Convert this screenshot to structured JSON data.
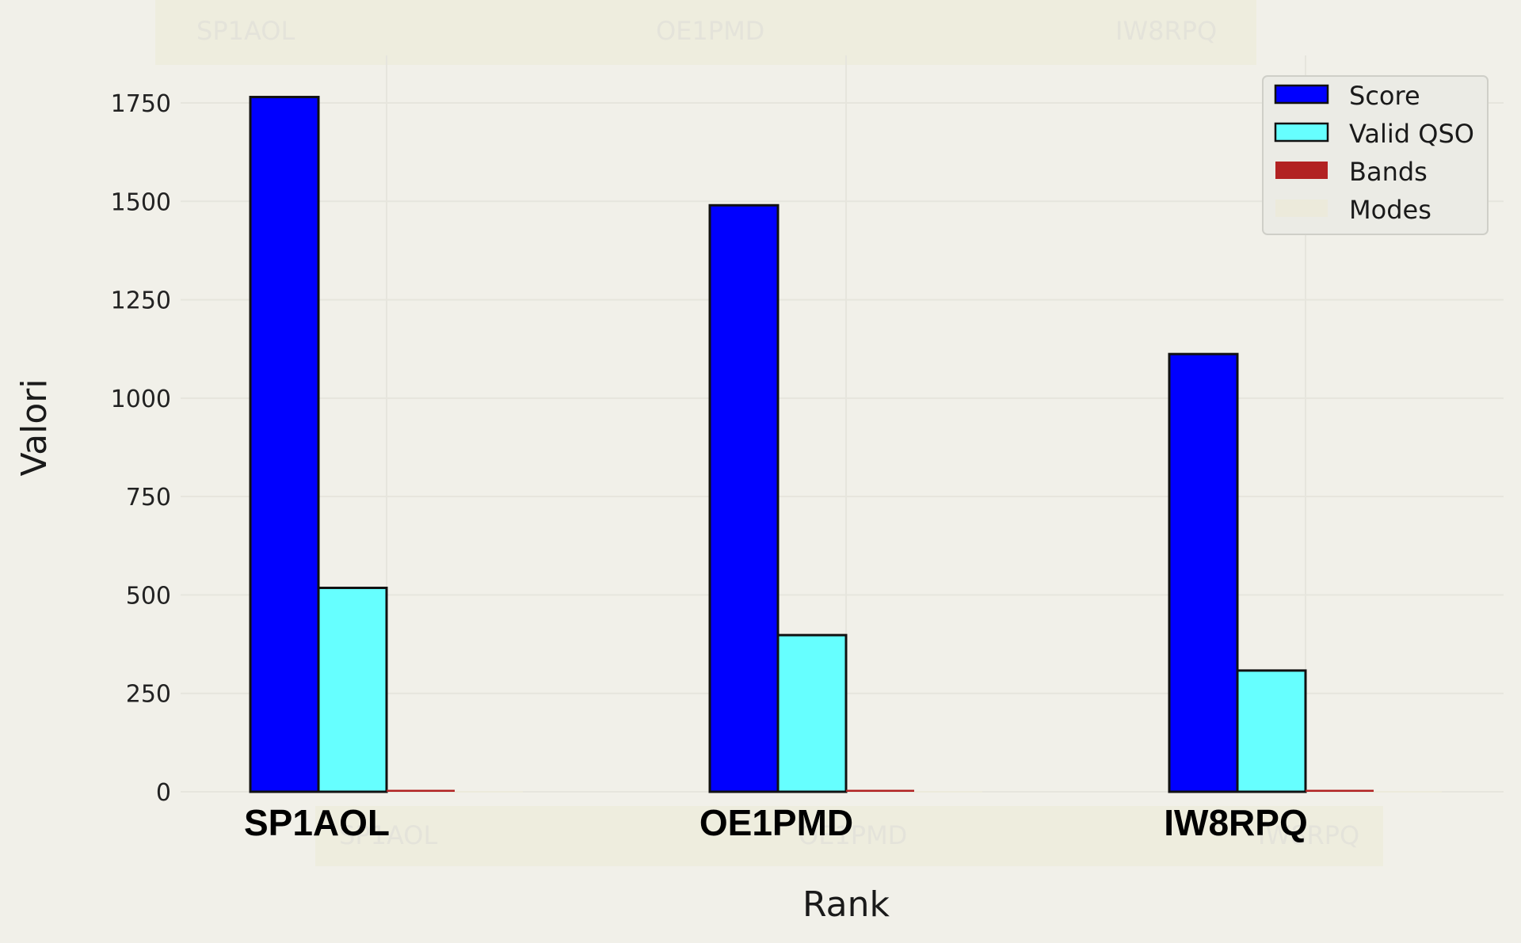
{
  "chart_data": {
    "type": "bar",
    "xlabel": "Rank",
    "ylabel": "Valori",
    "categories": [
      "SP1AOL",
      "OE1PMD",
      "IW8RPQ"
    ],
    "series": [
      {
        "name": "Score",
        "values": [
          1765,
          1490,
          1112
        ],
        "color": "#0000ff"
      },
      {
        "name": "Valid QSO",
        "values": [
          518,
          398,
          308
        ],
        "color": "#66ffff"
      },
      {
        "name": "Bands",
        "values": [
          5,
          5,
          5
        ],
        "color": "#b22222"
      },
      {
        "name": "Modes",
        "values": [
          2,
          2,
          2
        ],
        "color": "#eceadb"
      }
    ],
    "ylim": [
      0,
      1850
    ],
    "yticks": [
      0,
      250,
      500,
      750,
      1000,
      1250,
      1500,
      1750
    ],
    "grid": true,
    "legend": "top-right"
  }
}
